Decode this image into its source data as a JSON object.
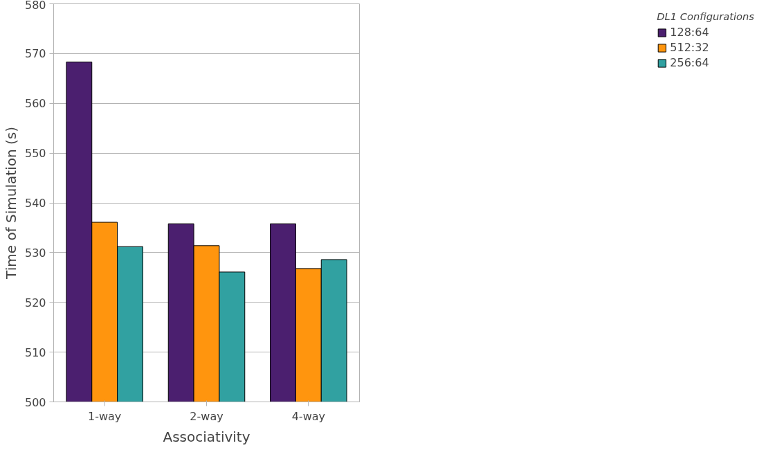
{
  "chart_data": {
    "type": "bar",
    "xlabel": "Associativity",
    "ylabel": "Time of Simulation (s)",
    "legend_title": "DL1 Configurations",
    "categories": [
      "1-way",
      "2-way",
      "4-way"
    ],
    "series": [
      {
        "name": "128:64",
        "color": "#4b1f6f",
        "values": [
          568.3,
          535.8,
          535.8
        ]
      },
      {
        "name": "512:32",
        "color": "#ff950e",
        "values": [
          536.1,
          531.4,
          526.8
        ]
      },
      {
        "name": "256:64",
        "color": "#31a1a1",
        "values": [
          531.2,
          526.1,
          528.6
        ]
      }
    ],
    "ylim": [
      500,
      580
    ],
    "yticks": [
      500,
      510,
      520,
      530,
      540,
      550,
      560,
      570,
      580
    ],
    "grid": "y",
    "legend": "right"
  }
}
